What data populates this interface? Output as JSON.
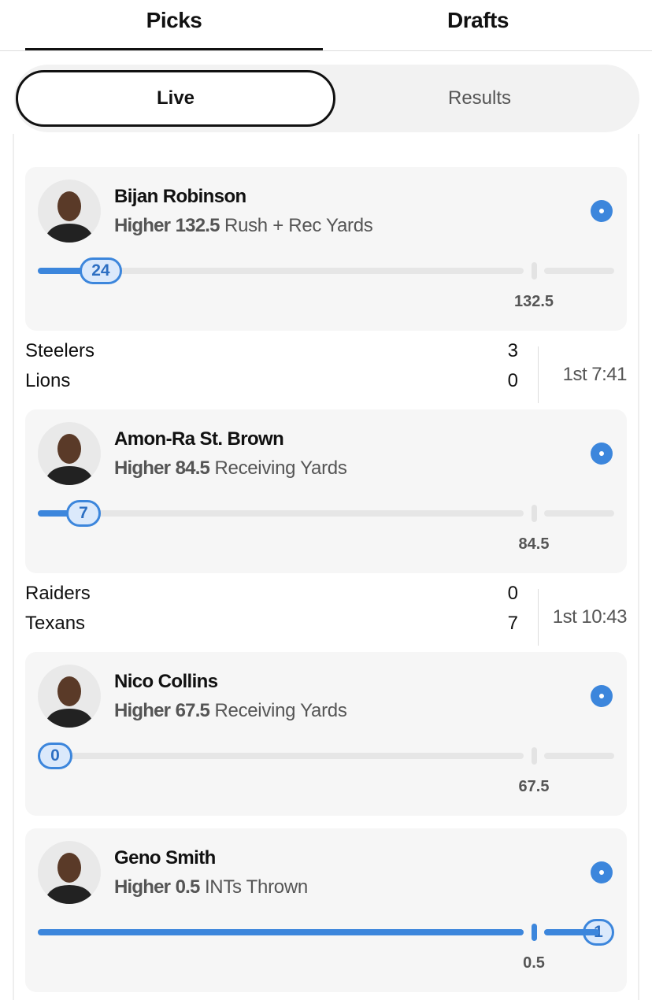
{
  "tabs": [
    {
      "label": "Picks",
      "active": true
    },
    {
      "label": "Drafts",
      "active": false
    }
  ],
  "segments": {
    "live": "Live",
    "results": "Results",
    "selected": "Live"
  },
  "colors": {
    "accent": "#3c86dc",
    "knob_bg": "#dbe9fb"
  },
  "picks": [
    {
      "player": "Bijan Robinson",
      "direction": "Higher",
      "line": "132.5",
      "stat": "Rush + Rec Yards",
      "current": "24",
      "status_icon": "live-dot-icon"
    },
    {
      "player": "Amon-Ra St. Brown",
      "direction": "Higher",
      "line": "84.5",
      "stat": "Receiving Yards",
      "current": "7",
      "status_icon": "live-dot-icon"
    },
    {
      "player": "Nico Collins",
      "direction": "Higher",
      "line": "67.5",
      "stat": "Receiving Yards",
      "current": "0",
      "status_icon": "live-dot-icon"
    },
    {
      "player": "Geno Smith",
      "direction": "Higher",
      "line": "0.5",
      "stat": "INTs Thrown",
      "current": "1",
      "status_icon": "live-dot-icon"
    }
  ],
  "games": [
    {
      "team1": "Steelers",
      "score1": "3",
      "team2": "Lions",
      "score2": "0",
      "clock": "1st 7:41"
    },
    {
      "team1": "Raiders",
      "score1": "0",
      "team2": "Texans",
      "score2": "7",
      "clock": "1st 10:43"
    }
  ]
}
